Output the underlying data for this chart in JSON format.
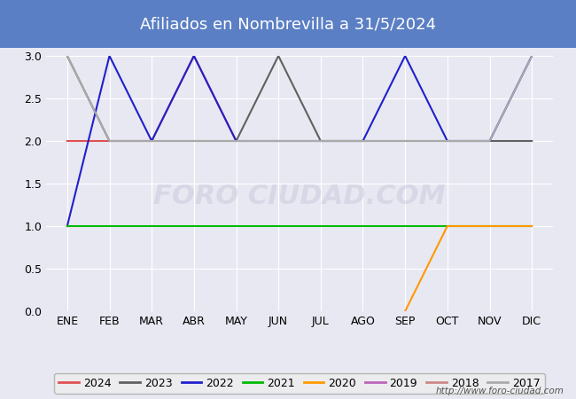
{
  "title": "Afiliados en Nombrevilla a 31/5/2024",
  "title_color": "#ffffff",
  "title_bg_color": "#5b7fc4",
  "months": [
    "ENE",
    "FEB",
    "MAR",
    "ABR",
    "MAY",
    "JUN",
    "JUL",
    "AGO",
    "SEP",
    "OCT",
    "NOV",
    "DIC"
  ],
  "series": {
    "2024": {
      "color": "#e05050",
      "data": [
        2,
        2,
        2,
        3,
        2,
        null,
        null,
        null,
        null,
        null,
        null,
        null
      ]
    },
    "2023": {
      "color": "#606060",
      "data": [
        3,
        2,
        2,
        2,
        2,
        3,
        2,
        2,
        2,
        2,
        2,
        2
      ]
    },
    "2022": {
      "color": "#2020cc",
      "data": [
        1,
        3,
        2,
        3,
        2,
        2,
        2,
        2,
        3,
        2,
        2,
        3
      ]
    },
    "2021": {
      "color": "#00bb00",
      "data": [
        1,
        1,
        1,
        1,
        1,
        1,
        1,
        1,
        1,
        1,
        1,
        1
      ]
    },
    "2020": {
      "color": "#ff9900",
      "data": [
        null,
        null,
        null,
        null,
        null,
        null,
        null,
        null,
        0,
        1,
        1,
        1
      ]
    },
    "2019": {
      "color": "#bb66bb",
      "data": [
        null,
        null,
        null,
        null,
        null,
        null,
        null,
        null,
        null,
        null,
        null,
        null
      ]
    },
    "2018": {
      "color": "#cc8888",
      "data": [
        null,
        null,
        null,
        null,
        null,
        null,
        null,
        null,
        null,
        null,
        null,
        null
      ]
    },
    "2017": {
      "color": "#aaaaaa",
      "data": [
        3,
        2,
        2,
        2,
        2,
        2,
        2,
        2,
        2,
        2,
        2,
        3
      ]
    }
  },
  "ylim": [
    0,
    3.0
  ],
  "yticks": [
    0.0,
    0.5,
    1.0,
    1.5,
    2.0,
    2.5,
    3.0
  ],
  "watermark": "http://www.foro-ciudad.com",
  "bg_color": "#e8e8f2",
  "grid_color": "#ffffff",
  "series_order": [
    "2024",
    "2023",
    "2022",
    "2021",
    "2020",
    "2019",
    "2018",
    "2017"
  ]
}
